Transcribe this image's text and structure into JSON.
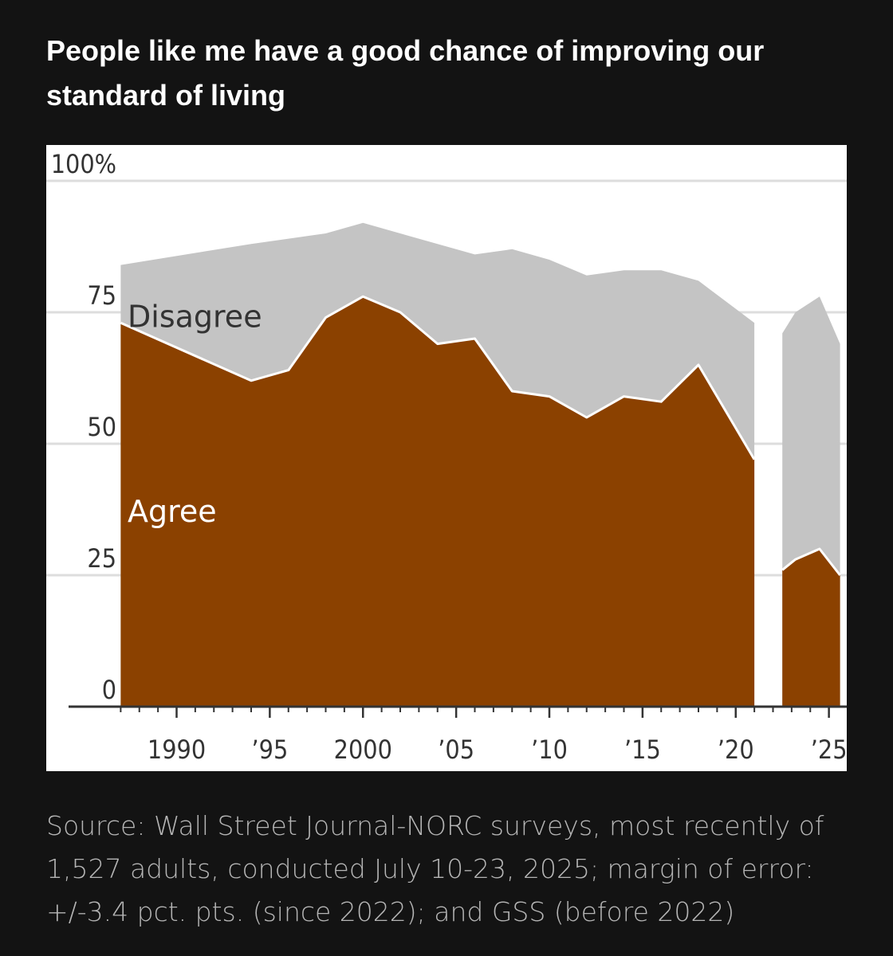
{
  "title": "People like me have a good chance of improving our standard of living",
  "source": "Source: Wall Street Journal-NORC surveys, most recently of 1,527 adults, conducted July 10-23, 2025; margin of error: +/-3.4 pct. pts. (since 2022); and GSS (before 2022)",
  "colors": {
    "background": "#131313",
    "agree": "#8b4100",
    "disagree": "#c4c4c4",
    "gridline": "#dddddd",
    "gap": "#ffffff"
  },
  "chart_data": {
    "type": "area",
    "stacked": true,
    "ylim": [
      0,
      100
    ],
    "yticks": [
      {
        "value": 0,
        "label": "0"
      },
      {
        "value": 25,
        "label": "25"
      },
      {
        "value": 50,
        "label": "50"
      },
      {
        "value": 75,
        "label": "75"
      },
      {
        "value": 100,
        "label": "100%"
      }
    ],
    "xlim": [
      1986,
      2026
    ],
    "xticks": [
      {
        "value": 1990,
        "label": "1990"
      },
      {
        "value": 1995,
        "label": "’95"
      },
      {
        "value": 2000,
        "label": "2000"
      },
      {
        "value": 2005,
        "label": "’05"
      },
      {
        "value": 2010,
        "label": "’10"
      },
      {
        "value": 2015,
        "label": "’15"
      },
      {
        "value": 2020,
        "label": "’20"
      },
      {
        "value": 2025,
        "label": "’25"
      }
    ],
    "grid": true,
    "segments": [
      {
        "x": [
          1987,
          1994,
          1996,
          1998,
          2000,
          2002,
          2004,
          2006,
          2008,
          2010,
          2012,
          2014,
          2016,
          2018,
          2021
        ],
        "agree": [
          73,
          62,
          64,
          74,
          78,
          75,
          69,
          70,
          60,
          59,
          55,
          59,
          58,
          65,
          47
        ],
        "agree_or_disagree": [
          84,
          88,
          89,
          90,
          92,
          90,
          88,
          86,
          87,
          85,
          82,
          83,
          83,
          81,
          73
        ]
      },
      {
        "x": [
          2022.5,
          2023.2,
          2024.5,
          2025.6
        ],
        "agree": [
          26,
          28,
          30,
          25
        ],
        "agree_or_disagree": [
          71,
          75,
          78,
          69
        ]
      }
    ],
    "series": [
      {
        "name": "Agree",
        "color": "#8b4100"
      },
      {
        "name": "Disagree",
        "color": "#c4c4c4"
      }
    ]
  }
}
